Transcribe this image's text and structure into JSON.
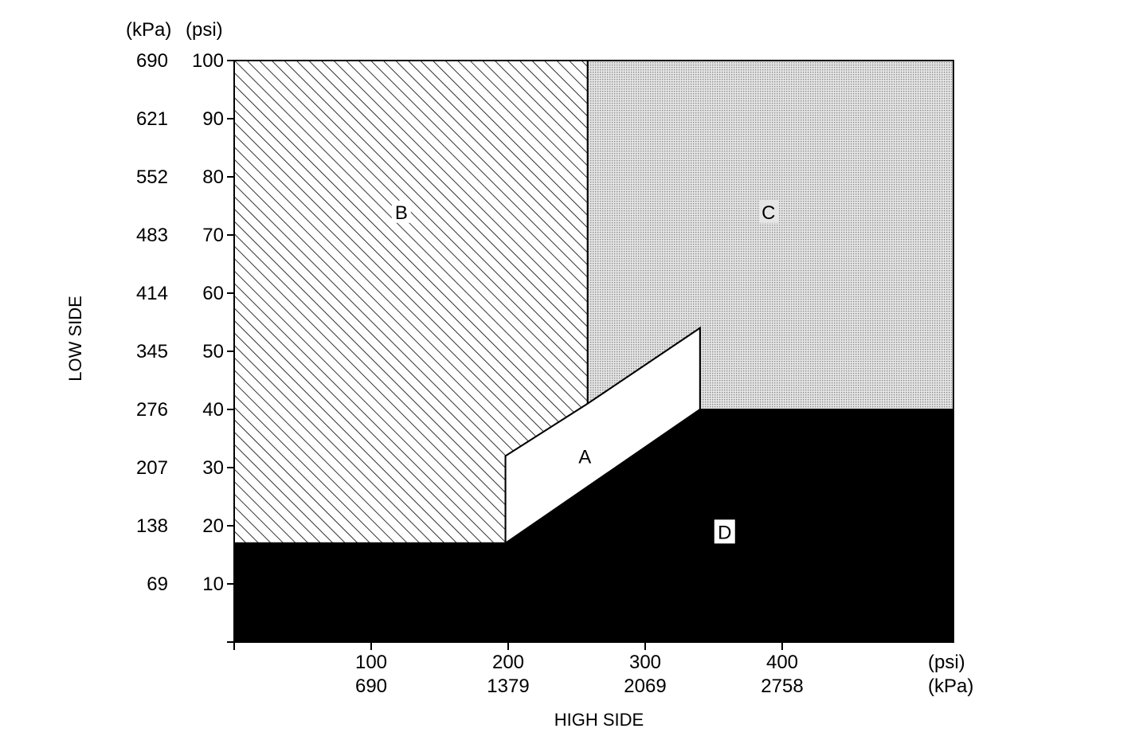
{
  "chart_data": {
    "type": "area",
    "xlabel": "HIGH SIDE",
    "ylabel": "LOW SIDE",
    "x_units": {
      "psi": "(psi)",
      "kpa": "(kPa)"
    },
    "y_units": {
      "kpa": "(kPa)",
      "psi": "(psi)"
    },
    "xlim": [
      0,
      525
    ],
    "ylim": [
      0,
      100
    ],
    "x_ticks": [
      {
        "psi": 100,
        "psi_label": "100",
        "kpa_label": "690"
      },
      {
        "psi": 200,
        "psi_label": "200",
        "kpa_label": "1379"
      },
      {
        "psi": 300,
        "psi_label": "300",
        "kpa_label": "2069"
      },
      {
        "psi": 400,
        "psi_label": "400",
        "kpa_label": "2758"
      }
    ],
    "y_ticks": [
      {
        "psi": 10,
        "psi_label": "10",
        "kpa_label": "69"
      },
      {
        "psi": 20,
        "psi_label": "20",
        "kpa_label": "138"
      },
      {
        "psi": 30,
        "psi_label": "30",
        "kpa_label": "207"
      },
      {
        "psi": 40,
        "psi_label": "40",
        "kpa_label": "276"
      },
      {
        "psi": 50,
        "psi_label": "50",
        "kpa_label": "345"
      },
      {
        "psi": 60,
        "psi_label": "60",
        "kpa_label": "414"
      },
      {
        "psi": 70,
        "psi_label": "70",
        "kpa_label": "483"
      },
      {
        "psi": 80,
        "psi_label": "80",
        "kpa_label": "552"
      },
      {
        "psi": 90,
        "psi_label": "90",
        "kpa_label": "621"
      },
      {
        "psi": 100,
        "psi_label": "100",
        "kpa_label": "690"
      }
    ],
    "regions": [
      {
        "id": "B",
        "label": "B",
        "fill": "diagonal-hatch",
        "label_at": [
          122,
          74
        ],
        "polygon": [
          [
            0,
            17
          ],
          [
            198,
            17
          ],
          [
            198,
            32
          ],
          [
            258,
            41
          ],
          [
            258,
            100
          ],
          [
            0,
            100
          ]
        ]
      },
      {
        "id": "C",
        "label": "C",
        "fill": "dotted-gray",
        "label_at": [
          390,
          74
        ],
        "polygon": [
          [
            258,
            41
          ],
          [
            340,
            54
          ],
          [
            340,
            40
          ],
          [
            525,
            40
          ],
          [
            525,
            100
          ],
          [
            258,
            100
          ]
        ]
      },
      {
        "id": "A",
        "label": "A",
        "fill": "white",
        "label_at": [
          256,
          32
        ],
        "polygon": [
          [
            198,
            17
          ],
          [
            340,
            40
          ],
          [
            340,
            54
          ],
          [
            258,
            41
          ],
          [
            198,
            32
          ]
        ]
      },
      {
        "id": "D",
        "label": "D",
        "fill": "black",
        "label_at": [
          358,
          19
        ],
        "polygon": [
          [
            0,
            0
          ],
          [
            525,
            0
          ],
          [
            525,
            40
          ],
          [
            340,
            40
          ],
          [
            198,
            17
          ],
          [
            0,
            17
          ]
        ]
      }
    ],
    "grid": false,
    "legend": "none"
  },
  "colors": {
    "hatch": "#000000",
    "dot": "#8a8a8a",
    "dot_background": "#e6e6e6",
    "solid": "#000000",
    "clear": "#ffffff"
  }
}
